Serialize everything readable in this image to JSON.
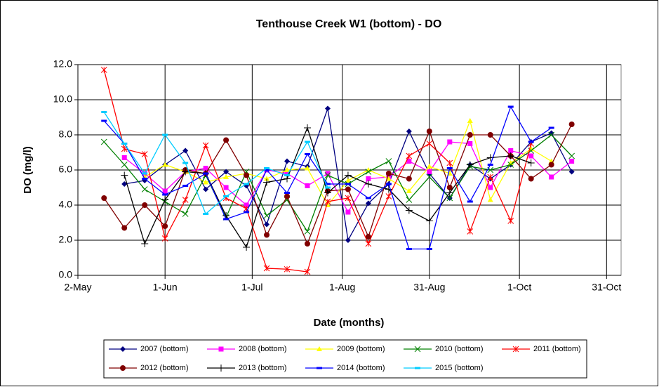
{
  "chart_data": {
    "type": "line",
    "title": "Tenthouse Creek W1 (bottom) - DO",
    "xlabel": "Date (months)",
    "ylabel": "DO (mg/l)",
    "x": [
      9,
      16,
      23,
      30,
      37,
      44,
      51,
      58,
      65,
      72,
      79,
      86,
      93,
      100,
      107,
      114,
      121,
      128,
      135,
      142,
      149,
      156,
      163,
      170
    ],
    "xlim": [
      0,
      187
    ],
    "xticks": [
      {
        "value": 0,
        "label": "2-May"
      },
      {
        "value": 30,
        "label": "1-Jun"
      },
      {
        "value": 60,
        "label": "1-Jul"
      },
      {
        "value": 91,
        "label": "1-Aug"
      },
      {
        "value": 121,
        "label": "31-Aug"
      },
      {
        "value": 152,
        "label": "1-Oct"
      },
      {
        "value": 182,
        "label": "31-Oct"
      }
    ],
    "ylim": [
      0,
      12
    ],
    "yticks": [
      {
        "value": 0,
        "label": "0.0"
      },
      {
        "value": 2,
        "label": "2.0"
      },
      {
        "value": 4,
        "label": "4.0"
      },
      {
        "value": 6,
        "label": "6.0"
      },
      {
        "value": 8,
        "label": "8.0"
      },
      {
        "value": 10,
        "label": "10.0"
      },
      {
        "value": 12,
        "label": "12.0"
      }
    ],
    "grid": true,
    "legend": "bottom",
    "series": [
      {
        "name": "2007 (bottom)",
        "color": "#000080",
        "marker": "diamond",
        "values": [
          null,
          5.2,
          5.4,
          6.3,
          7.1,
          4.9,
          5.9,
          5.1,
          2.9,
          6.5,
          6.2,
          9.5,
          2.0,
          4.1,
          5.2,
          8.2,
          5.8,
          4.4,
          6.3,
          5.5,
          6.3,
          7.6,
          8.1,
          5.9
        ]
      },
      {
        "name": "2008 (bottom)",
        "color": "#ff00ff",
        "marker": "square",
        "values": [
          null,
          6.7,
          5.8,
          4.8,
          5.9,
          6.1,
          5.0,
          4.0,
          6.0,
          5.8,
          5.1,
          5.8,
          3.6,
          5.5,
          5.6,
          6.5,
          5.9,
          7.6,
          7.5,
          5.0,
          7.1,
          6.8,
          5.6,
          6.5
        ]
      },
      {
        "name": "2009 (bottom)",
        "color": "#ffff00",
        "marker": "triangle",
        "values": [
          null,
          null,
          5.6,
          6.3,
          5.9,
          5.3,
          5.6,
          5.8,
          5.5,
          6.0,
          6.1,
          4.0,
          5.4,
          6.0,
          5.5,
          4.8,
          6.2,
          5.8,
          8.8,
          4.3,
          6.4,
          7.2,
          6.5,
          null
        ]
      },
      {
        "name": "2010 (bottom)",
        "color": "#008000",
        "marker": "x",
        "values": [
          7.6,
          6.3,
          4.9,
          4.2,
          3.5,
          5.7,
          3.3,
          5.9,
          3.4,
          4.3,
          2.5,
          5.7,
          5.2,
          5.9,
          6.5,
          4.3,
          5.6,
          4.4,
          6.2,
          6.0,
          6.3,
          7.1,
          8.0,
          6.8
        ]
      },
      {
        "name": "2011 (bottom)",
        "color": "#ff0000",
        "marker": "star",
        "values": [
          11.7,
          7.2,
          6.9,
          2.1,
          4.3,
          7.4,
          4.4,
          3.8,
          0.4,
          0.35,
          0.2,
          4.2,
          4.4,
          1.8,
          4.5,
          6.8,
          7.5,
          6.4,
          2.5,
          5.6,
          3.1,
          7.5,
          null,
          null
        ]
      },
      {
        "name": "2012 (bottom)",
        "color": "#800000",
        "marker": "circle",
        "values": [
          4.4,
          2.7,
          4.0,
          2.8,
          6.0,
          5.8,
          7.7,
          5.7,
          2.3,
          4.5,
          1.8,
          4.8,
          4.9,
          2.2,
          5.8,
          5.5,
          8.2,
          5.0,
          8.0,
          8.0,
          6.8,
          5.5,
          6.3,
          8.6
        ]
      },
      {
        "name": "2013 (bottom)",
        "color": "#000000",
        "marker": "plus",
        "values": [
          null,
          5.7,
          1.8,
          4.3,
          5.9,
          5.8,
          3.4,
          1.6,
          5.3,
          5.5,
          8.4,
          4.7,
          5.7,
          5.2,
          4.9,
          3.7,
          3.1,
          4.7,
          6.3,
          6.7,
          6.8,
          6.4,
          null,
          null
        ]
      },
      {
        "name": "2014 (bottom)",
        "color": "#0000ff",
        "marker": "dash",
        "values": [
          8.8,
          7.5,
          5.5,
          4.6,
          5.1,
          5.8,
          3.2,
          3.6,
          6.0,
          4.7,
          6.9,
          5.2,
          5.2,
          4.4,
          5.2,
          1.5,
          1.5,
          6.1,
          4.2,
          6.3,
          9.6,
          7.6,
          8.4,
          null
        ]
      },
      {
        "name": "2015 (bottom)",
        "color": "#00ccff",
        "marker": "dash",
        "values": [
          9.3,
          7.5,
          5.8,
          8.0,
          6.4,
          3.5,
          4.5,
          5.2,
          6.1,
          5.7,
          7.6,
          5.0,
          null,
          null,
          null,
          null,
          null,
          null,
          null,
          null,
          null,
          null,
          null,
          null
        ]
      }
    ]
  }
}
